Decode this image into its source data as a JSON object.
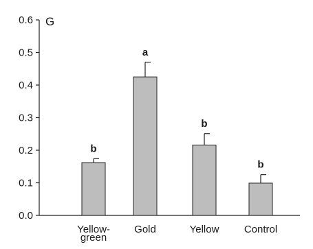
{
  "chart_data": {
    "type": "bar",
    "panel_label": "G",
    "categories": [
      [
        "Yellow-",
        "green"
      ],
      [
        "Gold"
      ],
      [
        "Yellow"
      ],
      [
        "Control"
      ]
    ],
    "values": [
      0.162,
      0.425,
      0.216,
      0.099
    ],
    "errors": [
      0.012,
      0.045,
      0.035,
      0.026
    ],
    "significance": [
      "b",
      "a",
      "b",
      "b"
    ],
    "ylim": [
      0,
      0.6
    ],
    "yticks": [
      0.0,
      0.1,
      0.2,
      0.3,
      0.4,
      0.5,
      0.6
    ],
    "ytick_labels": [
      "0.0",
      "0.1",
      "0.2",
      "0.3",
      "0.4",
      "0.5",
      "0.6"
    ],
    "xlabel": "",
    "ylabel": "",
    "grid": false,
    "legend": "none",
    "colors": {
      "bar_fill": "#bdbdbd",
      "bar_stroke": "#222222",
      "axis": "#222222"
    }
  }
}
